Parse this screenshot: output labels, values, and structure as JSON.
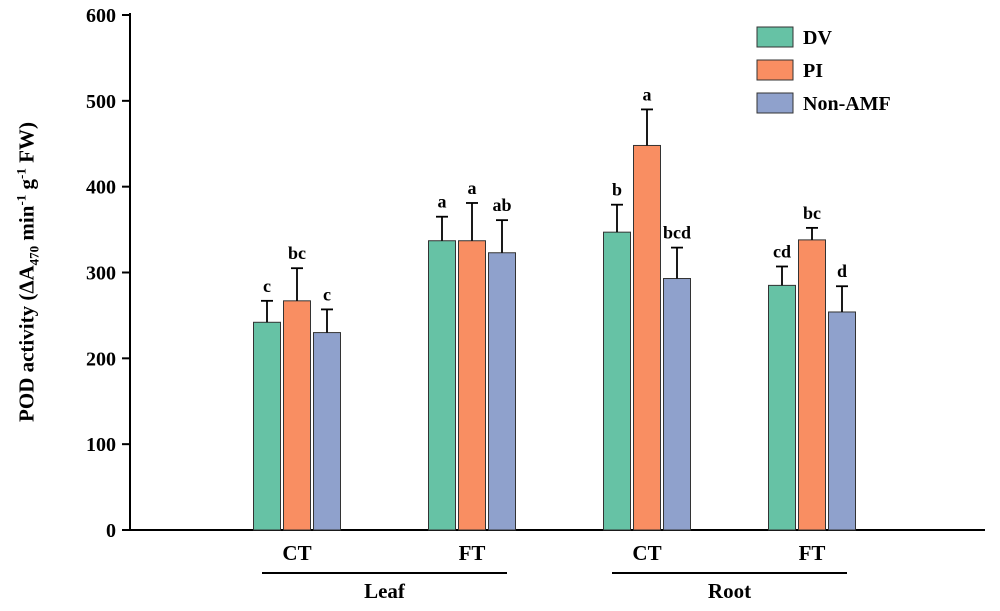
{
  "figure": {
    "ylabel_parts": {
      "pre": "POD activity (ΔA",
      "sub": "470",
      "mid1": " min",
      "sup1": "-1",
      "mid2": " g",
      "sup2": "-1",
      "post": " FW)"
    }
  },
  "chart_data": {
    "type": "bar",
    "title": "",
    "ylabel": "POD activity (ΔA₄₇₀ min⁻¹ g⁻¹ FW)",
    "xlabel": "",
    "ylim": [
      0,
      600
    ],
    "yticks": [
      0,
      100,
      200,
      300,
      400,
      500,
      600
    ],
    "grid": false,
    "legend_position": "top-right",
    "groups": [
      "CT",
      "FT",
      "CT",
      "FT"
    ],
    "sections": [
      {
        "label": "Leaf",
        "from": 0,
        "to": 1
      },
      {
        "label": "Root",
        "from": 2,
        "to": 3
      }
    ],
    "axis_color": "#000000",
    "error_bar_color": "#000000",
    "bar_edge_color": "#333333",
    "series": [
      {
        "name": "DV",
        "color": "#66c2a5",
        "values": [
          242,
          337,
          347,
          285
        ],
        "errors": [
          25,
          28,
          32,
          22
        ],
        "sig_letters": [
          "c",
          "a",
          "b",
          "cd"
        ]
      },
      {
        "name": "PI",
        "color": "#f98e62",
        "values": [
          267,
          337,
          448,
          338
        ],
        "errors": [
          38,
          44,
          42,
          14
        ],
        "sig_letters": [
          "bc",
          "a",
          "a",
          "bc"
        ]
      },
      {
        "name": "Non-AMF",
        "color": "#8fa1cc",
        "values": [
          230,
          323,
          293,
          254
        ],
        "errors": [
          27,
          38,
          36,
          30
        ],
        "sig_letters": [
          "c",
          "ab",
          "bcd",
          "d"
        ]
      }
    ]
  }
}
